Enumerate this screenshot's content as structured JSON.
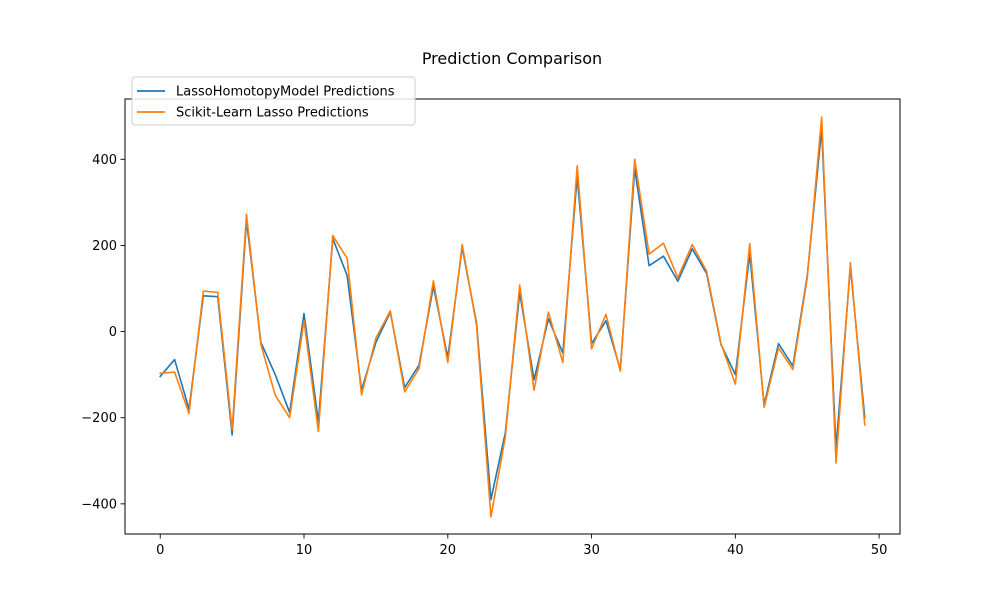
{
  "chart_data": {
    "type": "line",
    "title": "Prediction Comparison",
    "xlabel": "",
    "ylabel": "",
    "xlim": [
      -2.45,
      51.45
    ],
    "ylim": [
      -470,
      540
    ],
    "xticks": [
      0,
      10,
      20,
      30,
      40,
      50
    ],
    "yticks": [
      -400,
      -200,
      0,
      200,
      400
    ],
    "grid": false,
    "legend_position": "upper-left",
    "x": [
      0,
      1,
      2,
      3,
      4,
      5,
      6,
      7,
      8,
      9,
      10,
      11,
      12,
      13,
      14,
      15,
      16,
      17,
      18,
      19,
      20,
      21,
      22,
      23,
      24,
      25,
      26,
      27,
      28,
      29,
      30,
      31,
      32,
      33,
      34,
      35,
      36,
      37,
      38,
      39,
      40,
      41,
      42,
      43,
      44,
      45,
      46,
      47,
      48,
      49
    ],
    "series": [
      {
        "name": "LassoHomotopyModel Predictions",
        "color": "#1f77b4",
        "values": [
          -104,
          -65,
          -180,
          83,
          81,
          -240,
          258,
          -25,
          -100,
          -188,
          42,
          -210,
          216,
          130,
          -136,
          -25,
          45,
          -130,
          -78,
          105,
          -60,
          195,
          20,
          -390,
          -235,
          90,
          -112,
          30,
          -50,
          360,
          -28,
          25,
          -88,
          378,
          153,
          175,
          117,
          192,
          135,
          -30,
          -100,
          180,
          -170,
          -28,
          -80,
          130,
          470,
          -270,
          150,
          -200
        ]
      },
      {
        "name": "Scikit-Learn Lasso Predictions",
        "color": "#ff7f0e",
        "values": [
          -97,
          -94,
          -190,
          94,
          91,
          -228,
          272,
          -30,
          -148,
          -200,
          25,
          -232,
          223,
          170,
          -147,
          -15,
          48,
          -140,
          -86,
          118,
          -72,
          202,
          15,
          -430,
          -245,
          108,
          -136,
          45,
          -72,
          385,
          -40,
          40,
          -92,
          400,
          180,
          205,
          125,
          202,
          140,
          -28,
          -122,
          204,
          -176,
          -38,
          -88,
          125,
          498,
          -305,
          160,
          -217
        ]
      }
    ]
  }
}
